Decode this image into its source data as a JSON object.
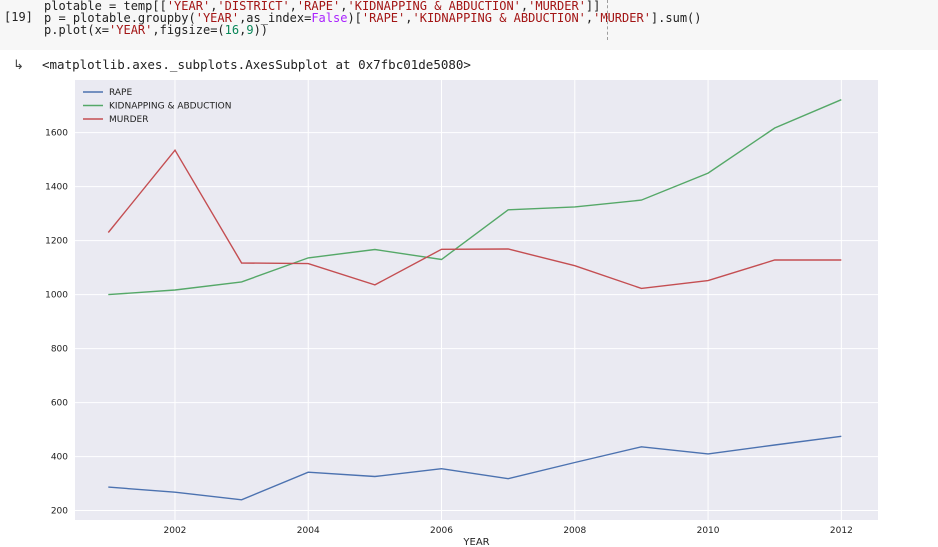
{
  "cell": {
    "prompt": "[19]",
    "code_lines": [
      [
        {
          "t": "plotable = temp[[",
          "c": ""
        },
        {
          "t": "'YEAR'",
          "c": "str"
        },
        {
          "t": ",",
          "c": ""
        },
        {
          "t": "'DISTRICT'",
          "c": "str"
        },
        {
          "t": ",",
          "c": ""
        },
        {
          "t": "'RAPE'",
          "c": "str"
        },
        {
          "t": ",",
          "c": ""
        },
        {
          "t": "'KIDNAPPING & ABDUCTION'",
          "c": "str"
        },
        {
          "t": ",",
          "c": ""
        },
        {
          "t": "'MURDER'",
          "c": "str"
        },
        {
          "t": "]]",
          "c": ""
        }
      ],
      [
        {
          "t": "p = plotable.groupby(",
          "c": ""
        },
        {
          "t": "'YEAR'",
          "c": "str"
        },
        {
          "t": ",as_index=",
          "c": ""
        },
        {
          "t": "False",
          "c": "kw"
        },
        {
          "t": ")[",
          "c": ""
        },
        {
          "t": "'RAPE'",
          "c": "str"
        },
        {
          "t": ",",
          "c": ""
        },
        {
          "t": "'KIDNAPPING & ABDUCTION'",
          "c": "str"
        },
        {
          "t": ",",
          "c": ""
        },
        {
          "t": "'MURDER'",
          "c": "str"
        },
        {
          "t": "].sum()",
          "c": ""
        }
      ],
      [
        {
          "t": "p.plot(x=",
          "c": ""
        },
        {
          "t": "'YEAR'",
          "c": "str"
        },
        {
          "t": ",figsize=(",
          "c": ""
        },
        {
          "t": "16",
          "c": "num"
        },
        {
          "t": ",",
          "c": ""
        },
        {
          "t": "9",
          "c": "num"
        },
        {
          "t": "))",
          "c": ""
        }
      ]
    ]
  },
  "output": {
    "text": "<matplotlib.axes._subplots.AxesSubplot at 0x7fbc01de5080>"
  },
  "chart_data": {
    "type": "line",
    "xlabel": "YEAR",
    "ylabel": "",
    "xlim": [
      2000.5,
      2012.55
    ],
    "ylim": [
      165,
      1795
    ],
    "xticks": [
      2002,
      2004,
      2006,
      2008,
      2010,
      2012
    ],
    "yticks": [
      200,
      400,
      600,
      800,
      1000,
      1200,
      1400,
      1600
    ],
    "grid": true,
    "legend": "top-left",
    "x": [
      2001,
      2002,
      2003,
      2004,
      2005,
      2006,
      2007,
      2008,
      2009,
      2010,
      2011,
      2012
    ],
    "series": [
      {
        "name": "RAPE",
        "color": "#4c72b0",
        "values": [
          287,
          268,
          240,
          342,
          326,
          355,
          318,
          378,
          436,
          410,
          443,
          475
        ]
      },
      {
        "name": "KIDNAPPING & ABDUCTION",
        "color": "#55a868",
        "values": [
          1000,
          1017,
          1047,
          1136,
          1167,
          1130,
          1314,
          1325,
          1350,
          1450,
          1617,
          1722
        ]
      },
      {
        "name": "MURDER",
        "color": "#c44e52",
        "values": [
          1230,
          1535,
          1117,
          1115,
          1036,
          1168,
          1169,
          1107,
          1023,
          1052,
          1128,
          1128
        ]
      }
    ]
  }
}
